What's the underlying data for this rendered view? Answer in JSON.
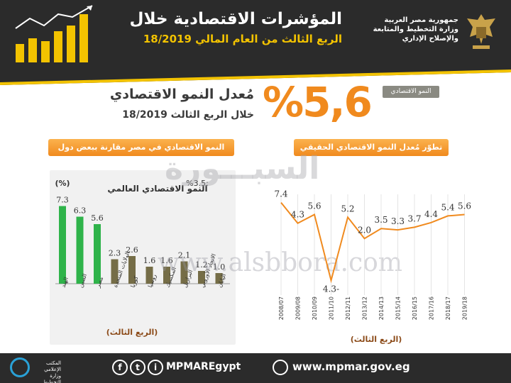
{
  "header": {
    "title": "المؤشرات الاقتصادية خلال",
    "subtitle": "الربع الثالث من العام المالي 18/2019",
    "ministry_line1": "جمهورية مصر العربية",
    "ministry_line2": "وزارة التخطيط والمتابعة",
    "ministry_line3": "والإصلاح الإداري"
  },
  "headline": {
    "tag": "النمو الاقتصادي",
    "value": "%5,6",
    "title": "مُعدل النمو الاقتصادي",
    "subtitle": "خلال الربع الثالث 18/2019"
  },
  "banners": {
    "left": "النمو الاقتصادي في مصر مقارنة ببعض دول العالم",
    "right": "تطوّر مُعدل النمو الاقتصادي الحقيقي"
  },
  "watermark": {
    "arabic": "السبـــورة",
    "url": "www.alsbbora.com"
  },
  "colors": {
    "orange": "#f08a1e",
    "green": "#2fb34a",
    "olive": "#756d47",
    "dark": "#2b2b2b",
    "yellow": "#f3c300"
  },
  "chart_data": [
    {
      "type": "bar",
      "title": "النمو الاقتصادي العالمي",
      "note": ":%3.5",
      "unit_label": "(%)",
      "xlabel": "(الربع الثالث)",
      "categories": [
        "الهند",
        "الصين",
        "مصر",
        "الولايات المتحدة",
        "كوريا",
        "روسيا",
        "المكسيك",
        "البرازيل",
        "الاتحاد الأوروبي",
        "اليابان"
      ],
      "values": [
        7.3,
        6.3,
        5.6,
        2.3,
        2.6,
        1.6,
        1.6,
        2.1,
        1.2,
        1.0
      ],
      "value_labels": [
        "7.3",
        "6.3",
        "5.6",
        "2.3",
        "2.6",
        "1.6",
        "1.6",
        "2.1",
        "1.2",
        "1.0"
      ],
      "highlighted": [
        "الهند",
        "الصين",
        "مصر"
      ],
      "ylim": [
        0,
        8
      ]
    },
    {
      "type": "line",
      "xlabel": "(الربع الثالث)",
      "x": [
        "2008/07",
        "2009/08",
        "2010/09",
        "2011/10",
        "2012/11",
        "2013/12",
        "2014/13",
        "2015/14",
        "2016/15",
        "2017/16",
        "2018/17",
        "2019/18"
      ],
      "values": [
        7.4,
        4.3,
        5.6,
        -4.3,
        5.2,
        2.0,
        3.5,
        3.3,
        3.7,
        4.4,
        5.4,
        5.6
      ],
      "value_labels": [
        "7.4",
        "4.3",
        "5.6",
        "4.3-",
        "5.2",
        "2.0",
        "3.5",
        "3.3",
        "3.7",
        "4.4",
        "5.4",
        "5.6"
      ],
      "ylim": [
        -5,
        8
      ]
    }
  ],
  "footer": {
    "logo_text": "المكتب الإعلامي وزارة التخطيط",
    "facebook": "f",
    "twitter": "t",
    "instagram": "i",
    "handle": "MPMAREgypt",
    "site": "www.mpmar.gov.eg"
  }
}
